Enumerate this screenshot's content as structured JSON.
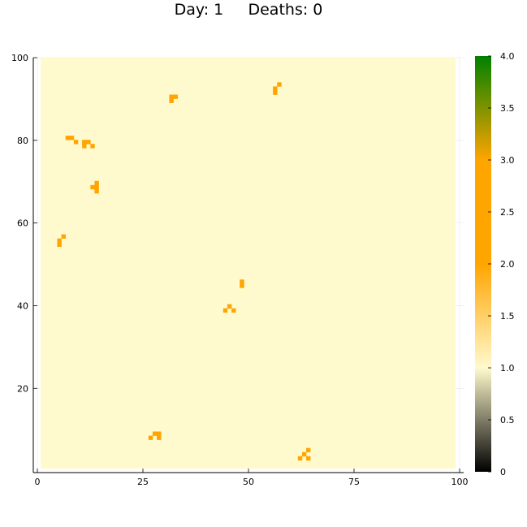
{
  "title": {
    "day_label": "Day: 1",
    "deaths_label": "Deaths: 0"
  },
  "chart_data": {
    "type": "heatmap",
    "grid_size": [
      100,
      100
    ],
    "background_value": 1.0,
    "xlim": [
      0,
      100
    ],
    "ylim": [
      1,
      100
    ],
    "xticks": [
      0,
      25,
      50,
      75,
      100
    ],
    "yticks": [
      20,
      40,
      60,
      80,
      100
    ],
    "colorbar": {
      "range": [
        0,
        4
      ],
      "ticks": [
        "0",
        "0.5",
        "1.0",
        "1.5",
        "2.0",
        "2.5",
        "3.0",
        "3.5",
        "4.0"
      ],
      "stops": [
        {
          "value": 0.0,
          "color": "#000000"
        },
        {
          "value": 1.0,
          "color": "#fffacd"
        },
        {
          "value": 2.0,
          "color": "#ffa500"
        },
        {
          "value": 3.0,
          "color": "#ffa500"
        },
        {
          "value": 4.0,
          "color": "#008000"
        }
      ]
    },
    "cells_value": 2.0,
    "cells": [
      [
        32,
        90
      ],
      [
        33,
        91
      ],
      [
        32,
        91
      ],
      [
        57,
        92
      ],
      [
        57,
        93
      ],
      [
        58,
        94
      ],
      [
        7,
        81
      ],
      [
        8,
        81
      ],
      [
        9,
        80
      ],
      [
        11,
        79
      ],
      [
        11,
        80
      ],
      [
        12,
        80
      ],
      [
        13,
        79
      ],
      [
        13,
        69
      ],
      [
        14,
        68
      ],
      [
        14,
        69
      ],
      [
        14,
        70
      ],
      [
        5,
        55
      ],
      [
        5,
        56
      ],
      [
        6,
        57
      ],
      [
        49,
        45
      ],
      [
        49,
        46
      ],
      [
        45,
        39
      ],
      [
        46,
        40
      ],
      [
        47,
        39
      ],
      [
        27,
        8
      ],
      [
        28,
        9
      ],
      [
        29,
        8
      ],
      [
        29,
        9
      ],
      [
        63,
        3
      ],
      [
        64,
        4
      ],
      [
        65,
        3
      ],
      [
        65,
        5
      ]
    ]
  }
}
